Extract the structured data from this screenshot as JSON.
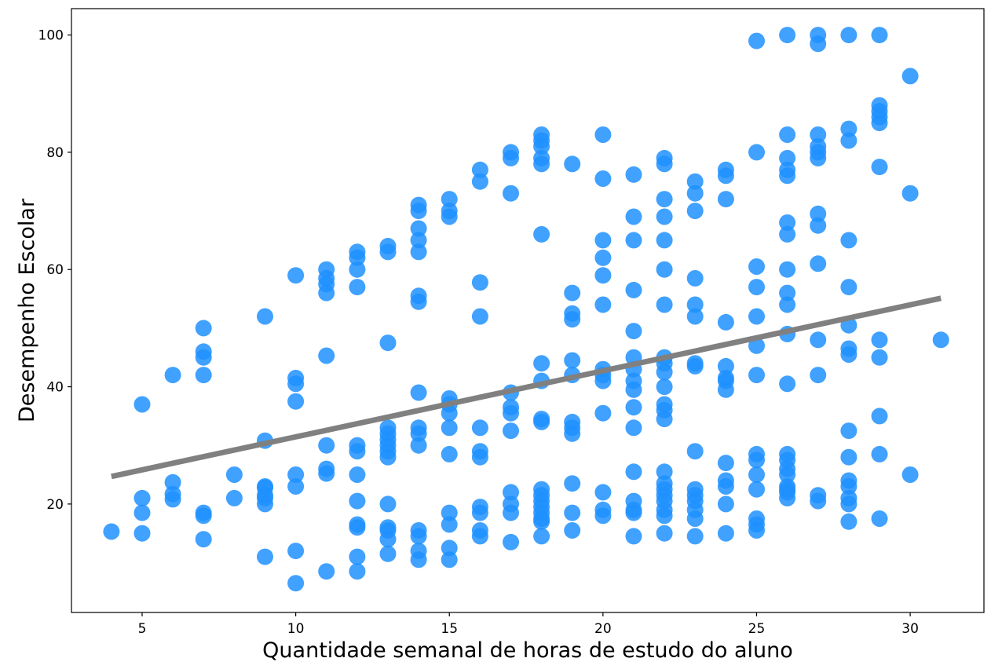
{
  "chart_data": {
    "type": "scatter",
    "xlabel": "Quantidade semanal de horas de estudo do aluno",
    "ylabel": "Desempenho Escolar",
    "xlim": [
      2.7,
      32.4
    ],
    "ylim": [
      1.5,
      104.5
    ],
    "xticks": [
      5,
      10,
      15,
      20,
      25,
      30
    ],
    "yticks": [
      20,
      40,
      60,
      80,
      100
    ],
    "grid": false,
    "point_color": "#1E90FF",
    "line_color": "#808080",
    "trend_line": {
      "x": [
        4,
        31
      ],
      "y": [
        24.7,
        55.1
      ]
    },
    "points": [
      [
        4,
        15.3
      ],
      [
        5,
        37
      ],
      [
        5,
        21
      ],
      [
        5,
        18.5
      ],
      [
        5,
        15
      ],
      [
        6,
        42
      ],
      [
        6,
        23.7
      ],
      [
        6,
        21.7
      ],
      [
        6,
        20.8
      ],
      [
        7,
        50
      ],
      [
        7,
        46
      ],
      [
        7,
        45
      ],
      [
        7,
        42
      ],
      [
        7,
        18.5
      ],
      [
        7,
        18
      ],
      [
        7,
        14
      ],
      [
        8,
        25
      ],
      [
        8,
        21
      ],
      [
        9,
        52
      ],
      [
        9,
        30.8
      ],
      [
        9,
        23
      ],
      [
        9,
        22.8
      ],
      [
        9,
        21.5
      ],
      [
        9,
        21
      ],
      [
        9,
        20
      ],
      [
        9,
        11
      ],
      [
        10,
        59
      ],
      [
        10,
        41.5
      ],
      [
        10,
        40.5
      ],
      [
        10,
        37.5
      ],
      [
        10,
        25
      ],
      [
        10,
        23
      ],
      [
        10,
        12
      ],
      [
        10,
        6.5
      ],
      [
        11,
        60
      ],
      [
        11,
        58.5
      ],
      [
        11,
        57.5
      ],
      [
        11,
        56
      ],
      [
        11,
        45.3
      ],
      [
        11,
        30
      ],
      [
        11,
        26
      ],
      [
        11,
        25.2
      ],
      [
        11,
        8.5
      ],
      [
        12,
        63
      ],
      [
        12,
        62
      ],
      [
        12,
        60
      ],
      [
        12,
        57
      ],
      [
        12,
        30
      ],
      [
        12,
        29
      ],
      [
        12,
        25
      ],
      [
        12,
        20.5
      ],
      [
        12,
        16.5
      ],
      [
        12,
        16
      ],
      [
        12,
        11
      ],
      [
        12,
        8.5
      ],
      [
        13,
        64
      ],
      [
        13,
        63
      ],
      [
        13,
        47.5
      ],
      [
        13,
        33
      ],
      [
        13,
        32
      ],
      [
        13,
        31
      ],
      [
        13,
        30
      ],
      [
        13,
        29
      ],
      [
        13,
        28
      ],
      [
        13,
        20
      ],
      [
        13,
        16
      ],
      [
        13,
        15.5
      ],
      [
        13,
        14
      ],
      [
        13,
        11.5
      ],
      [
        14,
        71
      ],
      [
        14,
        70
      ],
      [
        14,
        67
      ],
      [
        14,
        65
      ],
      [
        14,
        63
      ],
      [
        14,
        55.5
      ],
      [
        14,
        54.5
      ],
      [
        14,
        39
      ],
      [
        14,
        33
      ],
      [
        14,
        32
      ],
      [
        14,
        30
      ],
      [
        14,
        15.5
      ],
      [
        14,
        14.5
      ],
      [
        14,
        12
      ],
      [
        14,
        10.5
      ],
      [
        15,
        72
      ],
      [
        15,
        70
      ],
      [
        15,
        69
      ],
      [
        15,
        38
      ],
      [
        15,
        37
      ],
      [
        15,
        35.5
      ],
      [
        15,
        33
      ],
      [
        15,
        28.5
      ],
      [
        15,
        18.5
      ],
      [
        15,
        16.5
      ],
      [
        15,
        12.5
      ],
      [
        15,
        10.5
      ],
      [
        16,
        77
      ],
      [
        16,
        75
      ],
      [
        16,
        57.8
      ],
      [
        16,
        52
      ],
      [
        16,
        33
      ],
      [
        16,
        29
      ],
      [
        16,
        28
      ],
      [
        16,
        19.5
      ],
      [
        16,
        18.5
      ],
      [
        16,
        15.5
      ],
      [
        16,
        14.5
      ],
      [
        17,
        80
      ],
      [
        17,
        79
      ],
      [
        17,
        73
      ],
      [
        17,
        39
      ],
      [
        17,
        36.5
      ],
      [
        17,
        35.5
      ],
      [
        17,
        32.5
      ],
      [
        17,
        22
      ],
      [
        17,
        20
      ],
      [
        17,
        18.5
      ],
      [
        17,
        13.5
      ],
      [
        18,
        83
      ],
      [
        18,
        82
      ],
      [
        18,
        81
      ],
      [
        18,
        79
      ],
      [
        18,
        78
      ],
      [
        18,
        66
      ],
      [
        18,
        44
      ],
      [
        18,
        41
      ],
      [
        18,
        34.5
      ],
      [
        18,
        34
      ],
      [
        18,
        22.5
      ],
      [
        18,
        21.5
      ],
      [
        18,
        20.5
      ],
      [
        18,
        19.5
      ],
      [
        18,
        18.5
      ],
      [
        18,
        17.5
      ],
      [
        18,
        17
      ],
      [
        18,
        14.5
      ],
      [
        19,
        78
      ],
      [
        19,
        56
      ],
      [
        19,
        52.5
      ],
      [
        19,
        51.5
      ],
      [
        19,
        44.5
      ],
      [
        19,
        42
      ],
      [
        19,
        34
      ],
      [
        19,
        33
      ],
      [
        19,
        32
      ],
      [
        19,
        23.5
      ],
      [
        19,
        18.5
      ],
      [
        19,
        15.5
      ],
      [
        20,
        83
      ],
      [
        20,
        75.5
      ],
      [
        20,
        65
      ],
      [
        20,
        62
      ],
      [
        20,
        59
      ],
      [
        20,
        54
      ],
      [
        20,
        43
      ],
      [
        20,
        42
      ],
      [
        20,
        41
      ],
      [
        20,
        35.5
      ],
      [
        20,
        22
      ],
      [
        20,
        19
      ],
      [
        20,
        18
      ],
      [
        21,
        76.2
      ],
      [
        21,
        69
      ],
      [
        21,
        65
      ],
      [
        21,
        56.5
      ],
      [
        21,
        49.5
      ],
      [
        21,
        45
      ],
      [
        21,
        43
      ],
      [
        21,
        41
      ],
      [
        21,
        39.5
      ],
      [
        21,
        36.5
      ],
      [
        21,
        33
      ],
      [
        21,
        25.5
      ],
      [
        21,
        20.5
      ],
      [
        21,
        19
      ],
      [
        21,
        18.5
      ],
      [
        21,
        14.5
      ],
      [
        22,
        79
      ],
      [
        22,
        78
      ],
      [
        22,
        72
      ],
      [
        22,
        69
      ],
      [
        22,
        65
      ],
      [
        22,
        60
      ],
      [
        22,
        54
      ],
      [
        22,
        45
      ],
      [
        22,
        44
      ],
      [
        22,
        42.5
      ],
      [
        22,
        40
      ],
      [
        22,
        37
      ],
      [
        22,
        36
      ],
      [
        22,
        34.5
      ],
      [
        22,
        25.5
      ],
      [
        22,
        23.5
      ],
      [
        22,
        22.5
      ],
      [
        22,
        21.5
      ],
      [
        22,
        20.5
      ],
      [
        22,
        19
      ],
      [
        22,
        18
      ],
      [
        22,
        15
      ],
      [
        23,
        75
      ],
      [
        23,
        73
      ],
      [
        23,
        70
      ],
      [
        23,
        58.5
      ],
      [
        23,
        54
      ],
      [
        23,
        52
      ],
      [
        23,
        44
      ],
      [
        23,
        43.5
      ],
      [
        23,
        29
      ],
      [
        23,
        22.5
      ],
      [
        23,
        21.5
      ],
      [
        23,
        20.5
      ],
      [
        23,
        19
      ],
      [
        23,
        17.5
      ],
      [
        23,
        14.5
      ],
      [
        24,
        77
      ],
      [
        24,
        76
      ],
      [
        24,
        72
      ],
      [
        24,
        51
      ],
      [
        24,
        43.5
      ],
      [
        24,
        41.5
      ],
      [
        24,
        41
      ],
      [
        24,
        39.5
      ],
      [
        24,
        27
      ],
      [
        24,
        24
      ],
      [
        24,
        23
      ],
      [
        24,
        20
      ],
      [
        24,
        15
      ],
      [
        25,
        99
      ],
      [
        25,
        80
      ],
      [
        25,
        60.5
      ],
      [
        25,
        57
      ],
      [
        25,
        52
      ],
      [
        25,
        47
      ],
      [
        25,
        42
      ],
      [
        25,
        28.5
      ],
      [
        25,
        27.5
      ],
      [
        25,
        25
      ],
      [
        25,
        22.5
      ],
      [
        25,
        17.5
      ],
      [
        25,
        16.5
      ],
      [
        25,
        15.5
      ],
      [
        26,
        100
      ],
      [
        26,
        83
      ],
      [
        26,
        79
      ],
      [
        26,
        77
      ],
      [
        26,
        76
      ],
      [
        26,
        68
      ],
      [
        26,
        66
      ],
      [
        26,
        60
      ],
      [
        26,
        56
      ],
      [
        26,
        54
      ],
      [
        26,
        49
      ],
      [
        26,
        40.5
      ],
      [
        26,
        28.5
      ],
      [
        26,
        27.5
      ],
      [
        26,
        26
      ],
      [
        26,
        25
      ],
      [
        26,
        23
      ],
      [
        26,
        22.5
      ],
      [
        26,
        22
      ],
      [
        26,
        21
      ],
      [
        27,
        100
      ],
      [
        27,
        98.5
      ],
      [
        27,
        83
      ],
      [
        27,
        81
      ],
      [
        27,
        80
      ],
      [
        27,
        79
      ],
      [
        27,
        69.5
      ],
      [
        27,
        67.5
      ],
      [
        27,
        61
      ],
      [
        27,
        48
      ],
      [
        27,
        42
      ],
      [
        27,
        21.5
      ],
      [
        27,
        20.5
      ],
      [
        28,
        100
      ],
      [
        28,
        84
      ],
      [
        28,
        82
      ],
      [
        28,
        65
      ],
      [
        28,
        57
      ],
      [
        28,
        50.5
      ],
      [
        28,
        46.5
      ],
      [
        28,
        45.5
      ],
      [
        28,
        32.5
      ],
      [
        28,
        28
      ],
      [
        28,
        24
      ],
      [
        28,
        23
      ],
      [
        28,
        21
      ],
      [
        28,
        20
      ],
      [
        28,
        17
      ],
      [
        29,
        100
      ],
      [
        29,
        88
      ],
      [
        29,
        87
      ],
      [
        29,
        86
      ],
      [
        29,
        85
      ],
      [
        29,
        77.5
      ],
      [
        29,
        48
      ],
      [
        29,
        45
      ],
      [
        29,
        35
      ],
      [
        29,
        28.5
      ],
      [
        29,
        17.5
      ],
      [
        30,
        93
      ],
      [
        30,
        73
      ],
      [
        30,
        25
      ],
      [
        31,
        48
      ]
    ]
  }
}
